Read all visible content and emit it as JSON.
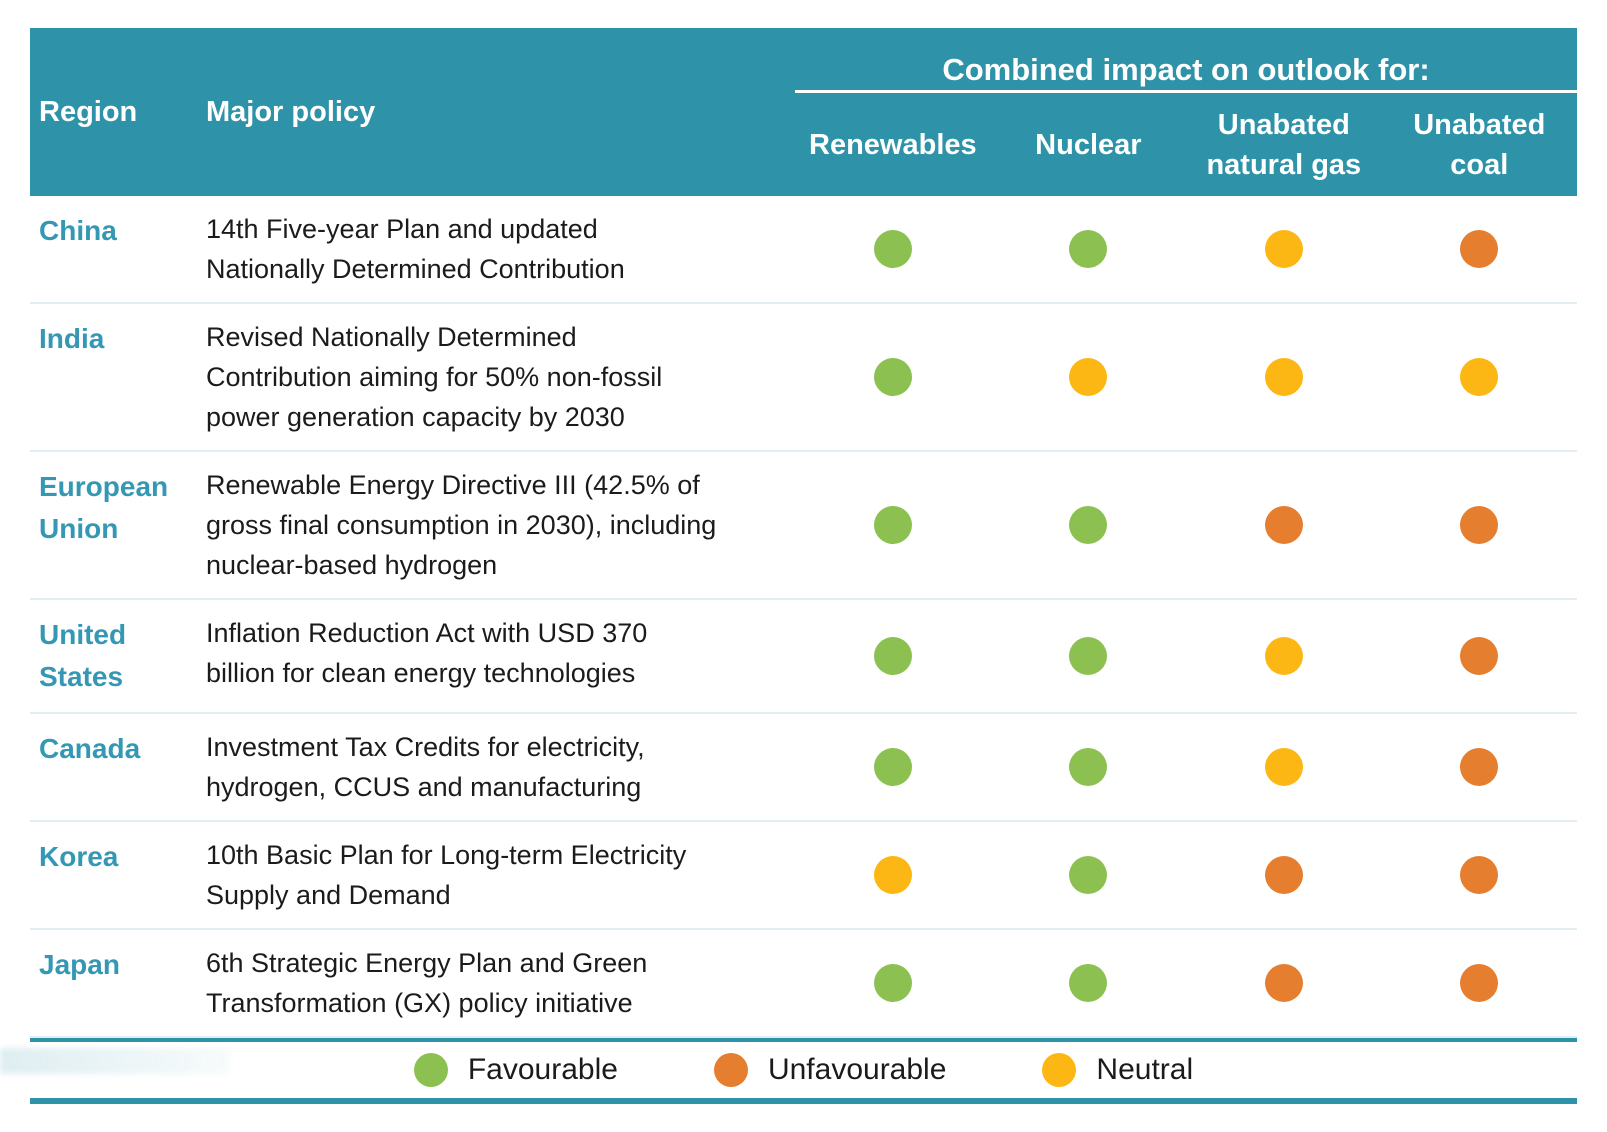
{
  "colors": {
    "header_bg": "#2e93a8",
    "region_text": "#3498b4",
    "row_divider": "#e3eef2",
    "favourable": "#8cc152",
    "unfavourable": "#e67e30",
    "neutral": "#fdb714"
  },
  "header": {
    "region": "Region",
    "major_policy": "Major policy",
    "group_title": "Combined impact on outlook for:",
    "columns": [
      "Renewables",
      "Nuclear",
      "Unabated natural gas",
      "Unabated coal"
    ]
  },
  "rows": [
    {
      "region": "China",
      "policy": "14th Five-year Plan and updated Nationally Determined Contribution",
      "impacts": [
        "favourable",
        "favourable",
        "neutral",
        "unfavourable"
      ]
    },
    {
      "region": "India",
      "policy": "Revised Nationally Determined Contribution aiming for 50% non-fossil power generation capacity by 2030",
      "impacts": [
        "favourable",
        "neutral",
        "neutral",
        "neutral"
      ]
    },
    {
      "region": "European Union",
      "policy": "Renewable Energy Directive III (42.5% of gross final consumption in 2030), including nuclear-based hydrogen",
      "impacts": [
        "favourable",
        "favourable",
        "unfavourable",
        "unfavourable"
      ]
    },
    {
      "region": "United States",
      "policy": "Inflation Reduction Act with USD 370 billion for clean energy technologies",
      "impacts": [
        "favourable",
        "favourable",
        "neutral",
        "unfavourable"
      ]
    },
    {
      "region": "Canada",
      "policy": "Investment Tax Credits for electricity, hydrogen, CCUS and manufacturing",
      "impacts": [
        "favourable",
        "favourable",
        "neutral",
        "unfavourable"
      ]
    },
    {
      "region": "Korea",
      "policy": "10th Basic Plan for Long-term Electricity Supply and Demand",
      "impacts": [
        "neutral",
        "favourable",
        "unfavourable",
        "unfavourable"
      ]
    },
    {
      "region": "Japan",
      "policy": "6th Strategic Energy Plan and Green Transformation (GX) policy initiative",
      "impacts": [
        "favourable",
        "favourable",
        "unfavourable",
        "unfavourable"
      ]
    }
  ],
  "legend": {
    "items": [
      {
        "label": "Favourable",
        "value": "favourable"
      },
      {
        "label": "Unfavourable",
        "value": "unfavourable"
      },
      {
        "label": "Neutral",
        "value": "neutral"
      }
    ]
  },
  "chart_data": {
    "type": "table",
    "title": "Combined impact on outlook for:",
    "columns": [
      "Region",
      "Major policy",
      "Renewables",
      "Nuclear",
      "Unabated natural gas",
      "Unabated coal"
    ],
    "rows": [
      [
        "China",
        "14th Five-year Plan and updated Nationally Determined Contribution",
        "Favourable",
        "Favourable",
        "Neutral",
        "Unfavourable"
      ],
      [
        "India",
        "Revised Nationally Determined Contribution aiming for 50% non-fossil power generation capacity by 2030",
        "Favourable",
        "Neutral",
        "Neutral",
        "Neutral"
      ],
      [
        "European Union",
        "Renewable Energy Directive III (42.5% of gross final consumption in 2030), including nuclear-based hydrogen",
        "Favourable",
        "Favourable",
        "Unfavourable",
        "Unfavourable"
      ],
      [
        "United States",
        "Inflation Reduction Act with USD 370 billion for clean energy technologies",
        "Favourable",
        "Favourable",
        "Neutral",
        "Unfavourable"
      ],
      [
        "Canada",
        "Investment Tax Credits for electricity, hydrogen, CCUS and manufacturing",
        "Favourable",
        "Favourable",
        "Neutral",
        "Unfavourable"
      ],
      [
        "Korea",
        "10th Basic Plan for Long-term Electricity Supply and Demand",
        "Neutral",
        "Favourable",
        "Unfavourable",
        "Unfavourable"
      ],
      [
        "Japan",
        "6th Strategic Energy Plan and Green Transformation (GX) policy initiative",
        "Favourable",
        "Favourable",
        "Unfavourable",
        "Unfavourable"
      ]
    ],
    "legend": [
      {
        "label": "Favourable",
        "color": "#8cc152"
      },
      {
        "label": "Unfavourable",
        "color": "#e67e30"
      },
      {
        "label": "Neutral",
        "color": "#fdb714"
      }
    ],
    "layout": {
      "legend_position": "bottom",
      "grid": "horizontal-dividers"
    }
  }
}
